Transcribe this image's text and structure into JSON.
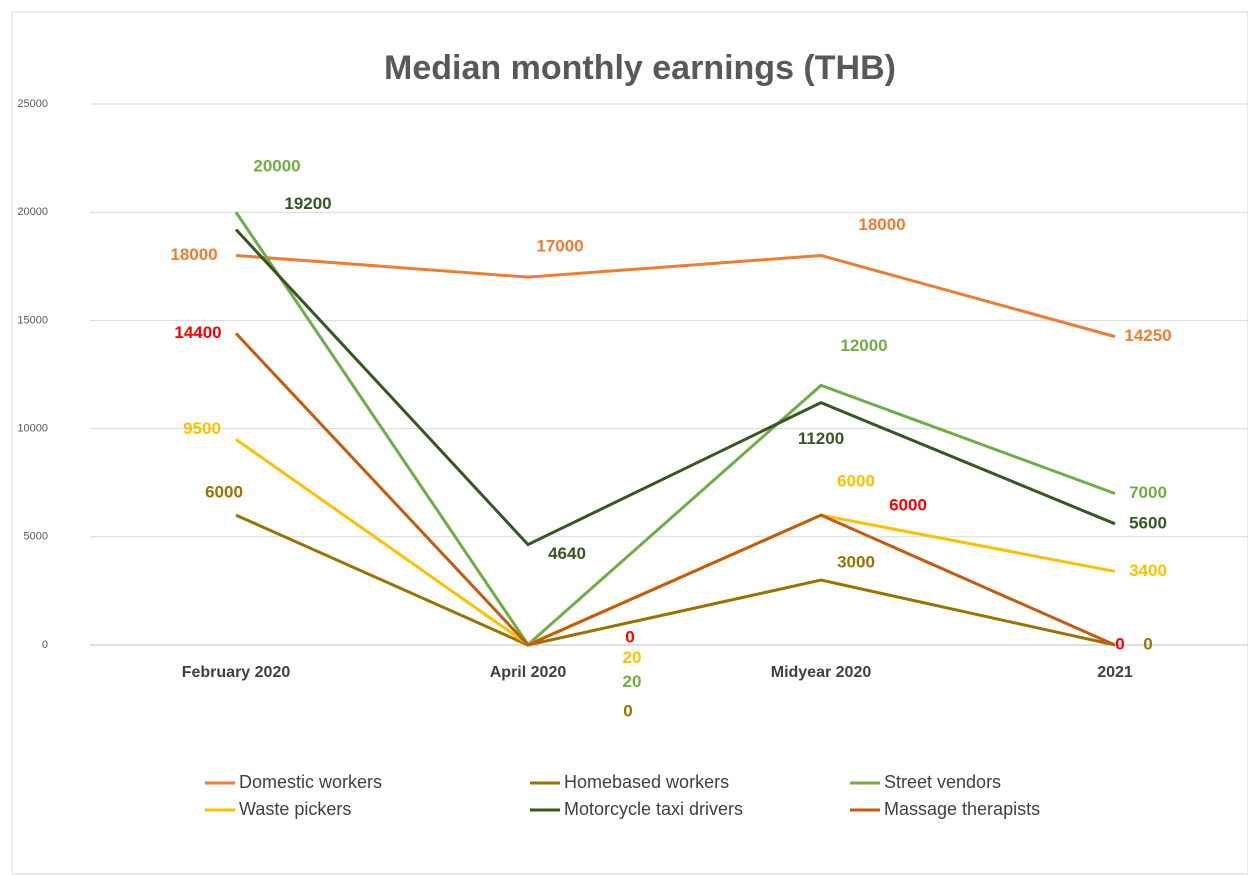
{
  "chart_data": {
    "type": "line",
    "title": "Median monthly earnings (THB)",
    "categories": [
      "February 2020",
      "April 2020",
      "Midyear 2020",
      "2021"
    ],
    "ylim": [
      0,
      25000
    ],
    "yticks": [
      0,
      5000,
      10000,
      15000,
      20000,
      25000
    ],
    "grid": true,
    "series": [
      {
        "name": "Domestic workers",
        "color": "#ed7d31",
        "values": [
          18000,
          17000,
          18000,
          14250
        ]
      },
      {
        "name": "Homebased workers",
        "color": "#997300",
        "values": [
          6000,
          0,
          3000,
          0
        ]
      },
      {
        "name": "Street vendors",
        "color": "#70ad47",
        "values": [
          20000,
          20,
          12000,
          7000
        ]
      },
      {
        "name": "Waste pickers",
        "color": "#ffc000",
        "values": [
          9500,
          20,
          6000,
          3400
        ]
      },
      {
        "name": "Motorcycle taxi drivers",
        "color": "#375623",
        "values": [
          19200,
          4640,
          11200,
          5600
        ]
      },
      {
        "name": "Massage therapists",
        "color": "#c55a11",
        "label_color": "#ff0000",
        "values": [
          14400,
          0,
          6000,
          0
        ]
      }
    ]
  }
}
